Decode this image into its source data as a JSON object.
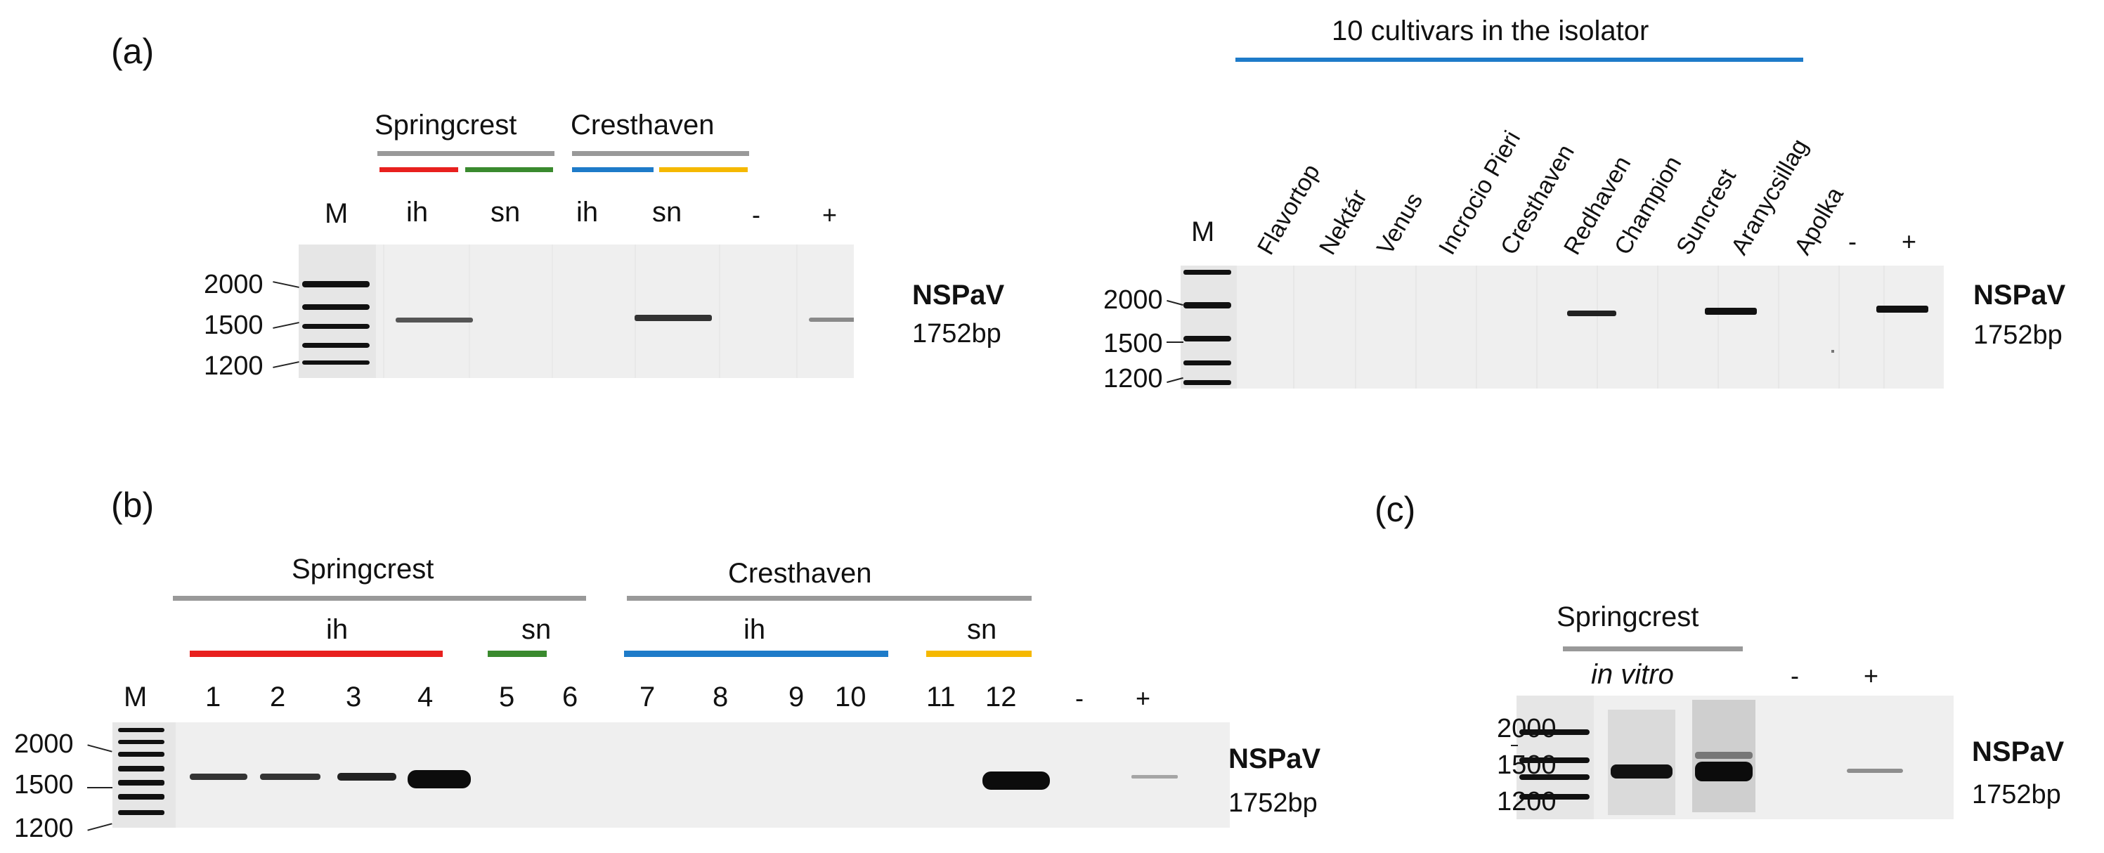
{
  "panels": {
    "a": "(a)",
    "b": "(b)",
    "c": "(c)"
  },
  "colors": {
    "red": "#e8201e",
    "green": "#3a8a2e",
    "blue": "#1e7bc9",
    "yellow": "#f5b800",
    "gray": "#999999",
    "gel_bg": "#efefef"
  },
  "common": {
    "product_name": "NSPaV",
    "product_size": "1752bp",
    "marker": "M",
    "neg": "-",
    "pos": "+",
    "size_2000": "2000",
    "size_1500": "1500",
    "size_1200": "1200"
  },
  "panel_a_left": {
    "cultivar1": "Springcrest",
    "cultivar2": "Cresthaven",
    "lanes": [
      "ih",
      "sn",
      "ih",
      "sn"
    ]
  },
  "panel_a_right": {
    "title": "10 cultivars in the isolator",
    "cultivars": [
      "Flavortop",
      "Nektár",
      "Venus",
      "Incrocio Pieri",
      "Cresthaven",
      "Redhaven",
      "Champion",
      "Suncrest",
      "Aranycsillag",
      "Apolka"
    ]
  },
  "panel_b": {
    "cultivar1": "Springcrest",
    "cultivar2": "Cresthaven",
    "ih": "ih",
    "sn": "sn",
    "lanes": [
      "1",
      "2",
      "3",
      "4",
      "5",
      "6",
      "7",
      "8",
      "9",
      "10",
      "11",
      "12"
    ]
  },
  "panel_c": {
    "cultivar": "Springcrest",
    "condition": "in vitro"
  }
}
